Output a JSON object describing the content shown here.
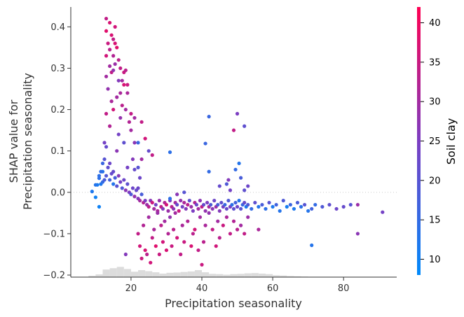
{
  "chart_data": {
    "type": "scatter",
    "xlabel": "Precipitation seasonality",
    "ylabel_line1": "SHAP value for",
    "ylabel_line2": "Precipitation seasonality",
    "colorbar_label": "Soil clay",
    "xlim": [
      3,
      95
    ],
    "ylim": [
      -0.205,
      0.448
    ],
    "xticks": [
      20,
      40,
      60,
      80
    ],
    "yticks": [
      -0.2,
      -0.1,
      0.0,
      0.1,
      0.2,
      0.3,
      0.4
    ],
    "ytick_labels": [
      "−0.2",
      "−0.1",
      "0.0",
      "0.1",
      "0.2",
      "0.3",
      "0.4"
    ],
    "color_range": [
      8,
      42
    ],
    "colorbar_ticks": [
      10,
      15,
      20,
      25,
      30,
      35,
      40
    ],
    "colors": {
      "low": "#008afb",
      "mid": "#7c3ec2",
      "high": "#ff0052",
      "histogram": "#dcdcdc",
      "zero_line": "#cccccc",
      "axis": "#333333"
    },
    "histogram": {
      "edges_start": 8,
      "bin_width": 2,
      "heights": [
        0.005,
        0.01,
        0.028,
        0.033,
        0.038,
        0.03,
        0.02,
        0.026,
        0.022,
        0.018,
        0.013,
        0.016,
        0.017,
        0.019,
        0.021,
        0.026,
        0.018,
        0.012,
        0.011,
        0.009,
        0.011,
        0.012,
        0.014,
        0.015,
        0.013,
        0.011,
        0.007,
        0.006,
        0.004,
        0.003,
        0.002,
        0.001,
        0.001,
        0.001,
        0.001,
        0.001,
        0.0,
        0.0
      ]
    },
    "points": [
      [
        9,
        0.002,
        12
      ],
      [
        10,
        -0.012,
        10
      ],
      [
        10.5,
        0.018,
        11
      ],
      [
        11,
        -0.035,
        10
      ],
      [
        11,
        0.04,
        14
      ],
      [
        11.5,
        0.02,
        12
      ],
      [
        12,
        0.025,
        15
      ],
      [
        12,
        0.05,
        13
      ],
      [
        12.5,
        0.03,
        18
      ],
      [
        12.5,
        0.08,
        20
      ],
      [
        12.5,
        0.12,
        24
      ],
      [
        13,
        0.42,
        34
      ],
      [
        13,
        0.39,
        38
      ],
      [
        13,
        0.33,
        36
      ],
      [
        13,
        0.28,
        30
      ],
      [
        13,
        0.19,
        34
      ],
      [
        13,
        0.11,
        22
      ],
      [
        13.5,
        0.36,
        35
      ],
      [
        13.5,
        0.25,
        28
      ],
      [
        14,
        0.41,
        37
      ],
      [
        14,
        0.345,
        33
      ],
      [
        14,
        0.305,
        30
      ],
      [
        14,
        0.16,
        32
      ],
      [
        14,
        0.07,
        23
      ],
      [
        14.5,
        0.38,
        37
      ],
      [
        14.5,
        0.29,
        34
      ],
      [
        14.5,
        0.22,
        31
      ],
      [
        15,
        0.37,
        34
      ],
      [
        15,
        0.33,
        32
      ],
      [
        15,
        0.295,
        28
      ],
      [
        15,
        0.2,
        36
      ],
      [
        15,
        0.05,
        22
      ],
      [
        15.5,
        0.4,
        36
      ],
      [
        15.5,
        0.36,
        37
      ],
      [
        15.5,
        0.31,
        29
      ],
      [
        16,
        0.35,
        38
      ],
      [
        16,
        0.23,
        30
      ],
      [
        16,
        0.1,
        27
      ],
      [
        16.5,
        0.32,
        33
      ],
      [
        16.5,
        0.27,
        26
      ],
      [
        16.5,
        0.14,
        24
      ],
      [
        17,
        0.3,
        34
      ],
      [
        17,
        0.24,
        31
      ],
      [
        17,
        0.18,
        28
      ],
      [
        17.5,
        0.27,
        30
      ],
      [
        17.5,
        0.21,
        33
      ],
      [
        18,
        0.29,
        35
      ],
      [
        18,
        0.26,
        37
      ],
      [
        18,
        0.12,
        21
      ],
      [
        18.5,
        0.295,
        33
      ],
      [
        18.5,
        0.2,
        30
      ],
      [
        19,
        0.26,
        35
      ],
      [
        19,
        0.24,
        31
      ],
      [
        19,
        0.06,
        24
      ],
      [
        19.5,
        0.17,
        32
      ],
      [
        20,
        0.19,
        34
      ],
      [
        20,
        0.15,
        30
      ],
      [
        20.5,
        0.08,
        26
      ],
      [
        21,
        0.18,
        30
      ],
      [
        21,
        0.055,
        22
      ],
      [
        22,
        0.12,
        16
      ],
      [
        22.5,
        0.035,
        23
      ],
      [
        23,
        0.17,
        34
      ],
      [
        23,
        0.08,
        30
      ],
      [
        24,
        0.13,
        36
      ],
      [
        25,
        0.1,
        22
      ],
      [
        26,
        0.09,
        34
      ],
      [
        11.5,
        0.05,
        14
      ],
      [
        12,
        0.07,
        16
      ],
      [
        13,
        0.04,
        19
      ],
      [
        13.5,
        0.06,
        21
      ],
      [
        14,
        0.03,
        17
      ],
      [
        14.5,
        0.045,
        22
      ],
      [
        15,
        0.02,
        13
      ],
      [
        15.5,
        0.035,
        18
      ],
      [
        16,
        0.015,
        20
      ],
      [
        16.5,
        0.04,
        26
      ],
      [
        17,
        0.025,
        24
      ],
      [
        17.5,
        0.01,
        19
      ],
      [
        18,
        0.03,
        23
      ],
      [
        18.5,
        0.005,
        27
      ],
      [
        19,
        0.02,
        21
      ],
      [
        19.5,
        0.0,
        25
      ],
      [
        20,
        -0.005,
        19
      ],
      [
        20.5,
        0.01,
        23
      ],
      [
        21,
        -0.01,
        28
      ],
      [
        21.5,
        0.005,
        22
      ],
      [
        22,
        -0.015,
        26
      ],
      [
        22.5,
        -0.02,
        30
      ],
      [
        23,
        -0.005,
        18
      ],
      [
        23.5,
        -0.025,
        32
      ],
      [
        24,
        -0.02,
        25
      ],
      [
        24.5,
        -0.03,
        29
      ],
      [
        25,
        -0.035,
        33
      ],
      [
        25.5,
        -0.02,
        27
      ],
      [
        26,
        -0.025,
        35
      ],
      [
        26.5,
        -0.04,
        30
      ],
      [
        27,
        -0.03,
        24
      ],
      [
        27.5,
        -0.045,
        31
      ],
      [
        28,
        -0.02,
        28
      ],
      [
        28.5,
        -0.035,
        34
      ],
      [
        29,
        -0.04,
        26
      ],
      [
        29.5,
        -0.025,
        32
      ],
      [
        30,
        -0.03,
        36
      ],
      [
        30.5,
        -0.045,
        29
      ],
      [
        31,
        -0.02,
        25
      ],
      [
        31.5,
        -0.035,
        33
      ],
      [
        32,
        -0.04,
        27
      ],
      [
        32.5,
        -0.025,
        30
      ],
      [
        33,
        -0.03,
        22
      ],
      [
        33.5,
        -0.045,
        35
      ],
      [
        34,
        -0.02,
        28
      ],
      [
        34.5,
        -0.035,
        24
      ],
      [
        35,
        -0.025,
        31
      ],
      [
        35.5,
        -0.04,
        26
      ],
      [
        36,
        -0.03,
        33
      ],
      [
        36.5,
        -0.02,
        21
      ],
      [
        37,
        -0.035,
        29
      ],
      [
        37.5,
        -0.045,
        25
      ],
      [
        38,
        -0.025,
        32
      ],
      [
        38.5,
        -0.03,
        23
      ],
      [
        39,
        -0.04,
        30
      ],
      [
        39.5,
        -0.02,
        27
      ],
      [
        40,
        -0.035,
        34
      ],
      [
        40.5,
        -0.03,
        22
      ],
      [
        41,
        -0.045,
        28
      ],
      [
        41.5,
        -0.025,
        25
      ],
      [
        42,
        -0.035,
        31
      ],
      [
        42.5,
        -0.03,
        19
      ],
      [
        43,
        -0.04,
        27
      ],
      [
        43.5,
        -0.02,
        23
      ],
      [
        44,
        -0.035,
        29
      ],
      [
        44.5,
        -0.03,
        18
      ],
      [
        45,
        -0.045,
        26
      ],
      [
        45.5,
        -0.025,
        21
      ],
      [
        46,
        -0.035,
        24
      ],
      [
        46.5,
        -0.03,
        16
      ],
      [
        47,
        -0.04,
        22
      ],
      [
        47.5,
        -0.02,
        19
      ],
      [
        48,
        -0.035,
        25
      ],
      [
        48.5,
        -0.03,
        14
      ],
      [
        49,
        -0.04,
        21
      ],
      [
        49.5,
        -0.025,
        17
      ],
      [
        50,
        -0.035,
        23
      ],
      [
        50.5,
        -0.02,
        13
      ],
      [
        51,
        -0.04,
        20
      ],
      [
        51.5,
        -0.03,
        16
      ],
      [
        52,
        -0.025,
        22
      ],
      [
        52.5,
        -0.035,
        12
      ],
      [
        53,
        -0.03,
        19
      ],
      [
        54,
        -0.04,
        15
      ],
      [
        55,
        -0.025,
        21
      ],
      [
        56,
        -0.035,
        13
      ],
      [
        57,
        -0.03,
        18
      ],
      [
        58,
        -0.04,
        14
      ],
      [
        59,
        -0.025,
        20
      ],
      [
        60,
        -0.035,
        12
      ],
      [
        61,
        -0.03,
        17
      ],
      [
        62,
        -0.045,
        13
      ],
      [
        63,
        -0.02,
        19
      ],
      [
        64,
        -0.035,
        11
      ],
      [
        65,
        -0.03,
        16
      ],
      [
        66,
        -0.04,
        12
      ],
      [
        67,
        -0.025,
        18
      ],
      [
        68,
        -0.035,
        14
      ],
      [
        69,
        -0.03,
        20
      ],
      [
        70,
        -0.045,
        13
      ],
      [
        71,
        -0.04,
        17
      ],
      [
        72,
        -0.03,
        15
      ],
      [
        74,
        -0.035,
        19
      ],
      [
        76,
        -0.03,
        21
      ],
      [
        78,
        -0.04,
        23
      ],
      [
        80,
        -0.035,
        22
      ],
      [
        82,
        -0.03,
        20
      ],
      [
        84,
        -0.03,
        29
      ],
      [
        84,
        -0.1,
        27
      ],
      [
        91,
        -0.048,
        24
      ],
      [
        22,
        -0.1,
        34
      ],
      [
        22.5,
        -0.13,
        36
      ],
      [
        23,
        -0.16,
        35
      ],
      [
        23.5,
        -0.08,
        32
      ],
      [
        24,
        -0.14,
        37
      ],
      [
        24.5,
        -0.15,
        33
      ],
      [
        25,
        -0.06,
        30
      ],
      [
        25.5,
        -0.17,
        36
      ],
      [
        26,
        -0.11,
        34
      ],
      [
        26.5,
        -0.09,
        31
      ],
      [
        27,
        -0.13,
        38
      ],
      [
        27.5,
        -0.05,
        29
      ],
      [
        28,
        -0.15,
        35
      ],
      [
        28.5,
        -0.08,
        33
      ],
      [
        29,
        -0.12,
        36
      ],
      [
        29.5,
        -0.07,
        30
      ],
      [
        30,
        -0.14,
        37
      ],
      [
        30.5,
        -0.1,
        32
      ],
      [
        31,
        -0.06,
        28
      ],
      [
        31.5,
        -0.13,
        35
      ],
      [
        32,
        -0.09,
        33
      ],
      [
        32.5,
        -0.05,
        30
      ],
      [
        33,
        -0.11,
        36
      ],
      [
        34,
        -0.15,
        34
      ],
      [
        34.5,
        -0.08,
        31
      ],
      [
        35,
        -0.12,
        35
      ],
      [
        36,
        -0.07,
        32
      ],
      [
        37,
        -0.13,
        37
      ],
      [
        37.5,
        -0.1,
        33
      ],
      [
        38,
        -0.09,
        36
      ],
      [
        39,
        -0.14,
        34
      ],
      [
        39.5,
        -0.06,
        30
      ],
      [
        40,
        -0.175,
        35
      ],
      [
        40.5,
        -0.12,
        33
      ],
      [
        41,
        -0.08,
        31
      ],
      [
        42,
        -0.05,
        28
      ],
      [
        43,
        -0.09,
        34
      ],
      [
        44,
        -0.13,
        36
      ],
      [
        44.5,
        -0.07,
        30
      ],
      [
        45,
        -0.11,
        33
      ],
      [
        46,
        -0.08,
        35
      ],
      [
        47,
        -0.06,
        31
      ],
      [
        48,
        -0.1,
        34
      ],
      [
        49,
        -0.07,
        32
      ],
      [
        50,
        -0.09,
        33
      ],
      [
        51,
        -0.08,
        30
      ],
      [
        52,
        -0.1,
        34
      ],
      [
        53,
        -0.06,
        29
      ],
      [
        56,
        -0.09,
        31
      ],
      [
        71,
        -0.128,
        13
      ],
      [
        18.5,
        -0.15,
        26
      ],
      [
        31,
        0.097,
        14
      ],
      [
        31,
        -0.015,
        14
      ],
      [
        41,
        0.118,
        16
      ],
      [
        42,
        0.183,
        16
      ],
      [
        42,
        0.05,
        15
      ],
      [
        49,
        0.15,
        34
      ],
      [
        50,
        0.19,
        25
      ],
      [
        50.5,
        0.07,
        13
      ],
      [
        51,
        0.035,
        18
      ],
      [
        52,
        0.16,
        21
      ],
      [
        53,
        0.015,
        23
      ],
      [
        47,
        0.02,
        19
      ],
      [
        45,
        0.015,
        22
      ],
      [
        48,
        0.005,
        24
      ],
      [
        33,
        -0.005,
        27
      ],
      [
        35,
        0.0,
        20
      ],
      [
        47.5,
        0.03,
        26
      ],
      [
        52,
        0.005,
        21
      ],
      [
        49.5,
        0.055,
        15
      ],
      [
        11,
        0.034,
        14
      ],
      [
        10,
        0.018,
        13
      ],
      [
        22,
        0.06,
        20
      ],
      [
        22,
        0.01,
        23
      ],
      [
        21,
        0.12,
        27
      ]
    ]
  }
}
